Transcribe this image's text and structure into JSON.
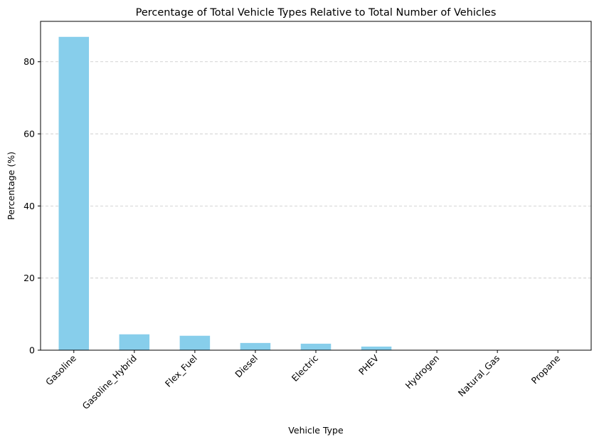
{
  "chart_data": {
    "type": "bar",
    "title": "Percentage of Total Vehicle Types Relative to Total Number of Vehicles",
    "xlabel": "Vehicle Type",
    "ylabel": "Percentage (%)",
    "categories": [
      "Gasoline",
      "Gasoline_Hybrid",
      "Flex_Fuel",
      "Diesel",
      "Electric",
      "PHEV",
      "Hydrogen",
      "Natural_Gas",
      "Propane"
    ],
    "values": [
      86.9,
      4.4,
      4.0,
      2.0,
      1.8,
      1.0,
      0.02,
      0.02,
      0.01
    ],
    "ylim": [
      0,
      91.2
    ],
    "yticks": [
      0,
      20,
      40,
      60,
      80
    ],
    "grid": "y-dashed",
    "bar_color": "#87CEEB",
    "grid_color": "#c8c8c8"
  }
}
